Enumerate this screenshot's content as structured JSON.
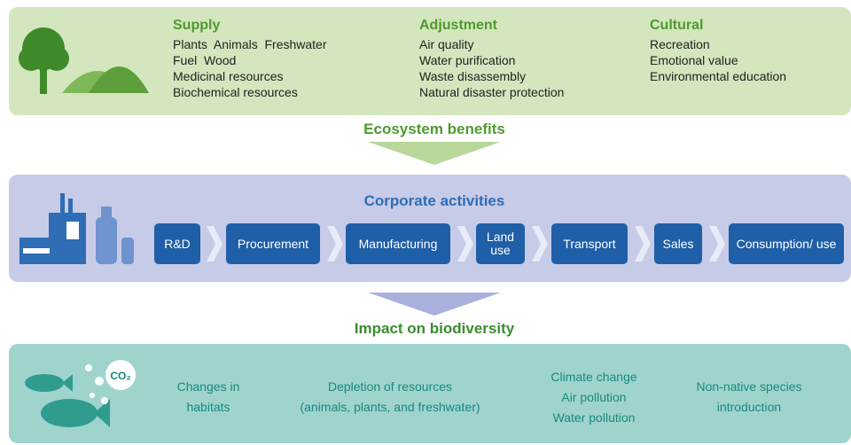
{
  "supply": {
    "title": "Supply",
    "items": [
      "Plants  Animals  Freshwater",
      "Fuel  Wood",
      "Medicinal resources",
      "Biochemical resources"
    ]
  },
  "adjustment": {
    "title": "Adjustment",
    "items": [
      "Air quality",
      "Water purification",
      "Waste disassembly",
      "Natural disaster protection"
    ]
  },
  "cultural": {
    "title": "Cultural",
    "items": [
      "Recreation",
      "Emotional value",
      "Environmental education"
    ]
  },
  "ecosystem_benefits": "Ecosystem benefits",
  "corporate": {
    "title": "Corporate activities",
    "steps": [
      "R&D",
      "Procurement",
      "Manufacturing",
      "Land use",
      "Transport",
      "Sales",
      "Consumption/ use"
    ]
  },
  "impact": {
    "title": "Impact on biodiversity",
    "icon_label": "CO₂",
    "items": [
      [
        "Changes in",
        "habitats"
      ],
      [
        "Depletion of resources",
        "(animals, plants, and freshwater)"
      ],
      [
        "Climate change",
        "Air pollution",
        "Water pollution"
      ],
      [
        "Non-native species",
        "introduction"
      ]
    ]
  }
}
